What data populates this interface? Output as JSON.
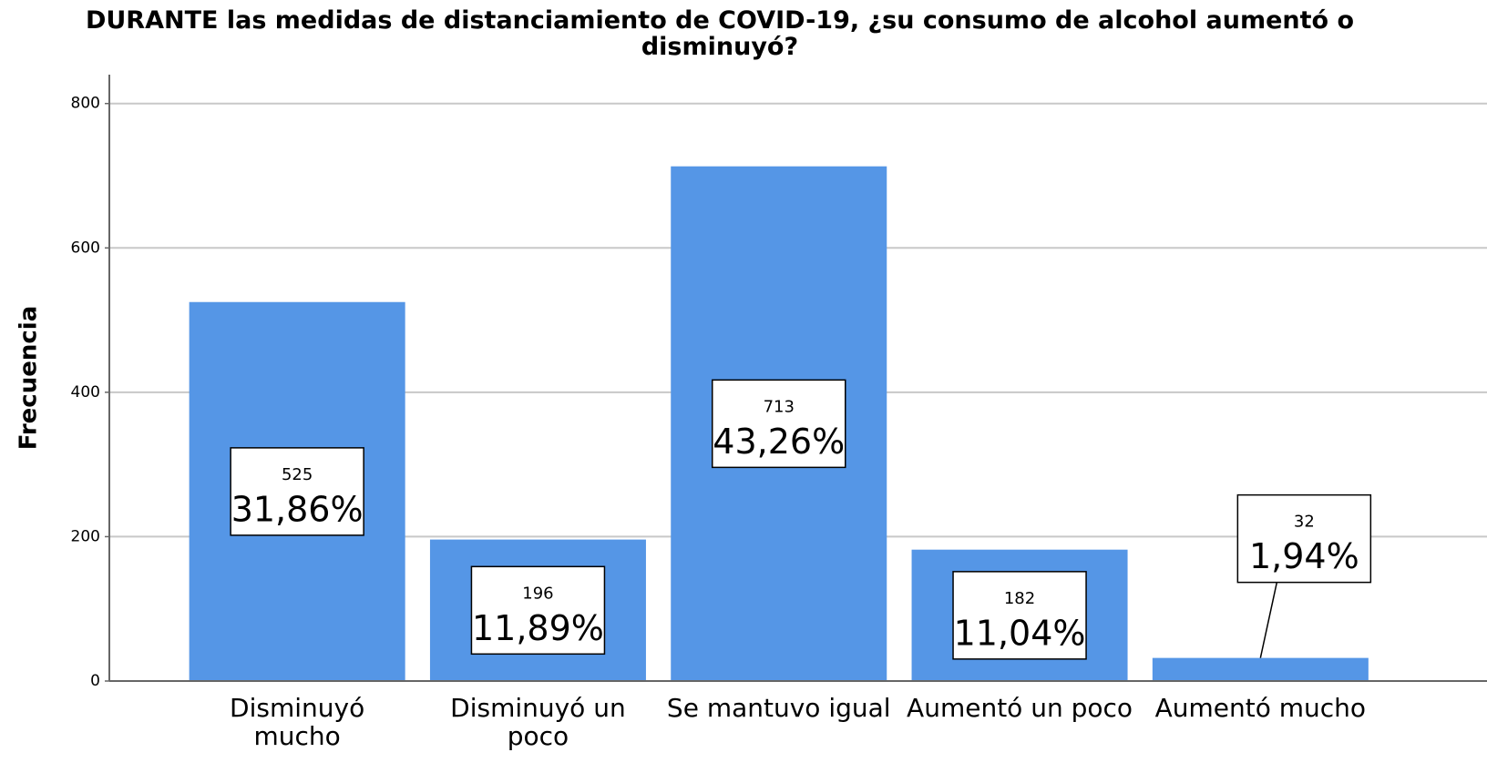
{
  "chart_data": {
    "type": "bar",
    "title": "DURANTE las medidas de distanciamiento de COVID-19, ¿su consumo de alcohol aumentó o disminuyó?",
    "y_label": "Frecuencia",
    "categories": [
      "Disminuyó mucho",
      "Disminuyó un poco",
      "Se mantuvo igual",
      "Aumentó un poco",
      "Aumentó mucho"
    ],
    "values": [
      525,
      196,
      713,
      182,
      32
    ],
    "percentages": [
      31.86,
      11.89,
      43.26,
      11.04,
      1.94
    ],
    "percent_labels": [
      "31,86%",
      "11,89%",
      "43,26%",
      "11,04%",
      "1,94%"
    ],
    "color": "#5596e6",
    "ylim": [
      0,
      840
    ],
    "yticks": [
      0,
      200,
      400,
      600,
      800
    ],
    "grid": true
  }
}
